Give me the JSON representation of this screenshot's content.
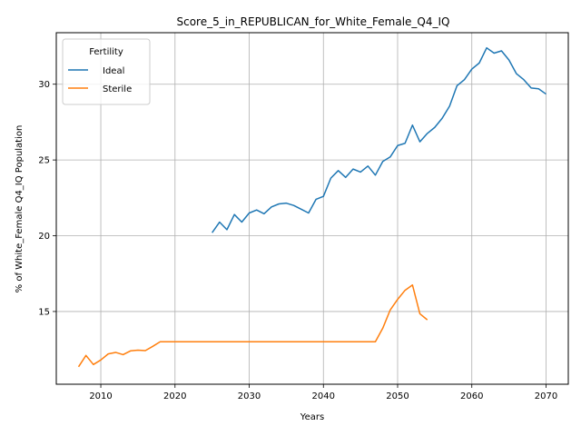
{
  "chart_data": {
    "type": "line",
    "title": "Score_5_in_REPUBLICAN_for_White_Female_Q4_IQ",
    "xlabel": "Years",
    "ylabel": "% of White_Female Q4_IQ Population",
    "xlim": [
      2004,
      2073
    ],
    "ylim": [
      10.2,
      33.4
    ],
    "xticks": [
      2010,
      2020,
      2030,
      2040,
      2050,
      2060,
      2070
    ],
    "yticks": [
      15,
      20,
      25,
      30
    ],
    "grid": true,
    "legend": {
      "title": "Fertility",
      "placement": "top-left"
    },
    "series": [
      {
        "name": "Ideal",
        "color": "#1f77b4",
        "x": [
          2025,
          2026,
          2027,
          2028,
          2029,
          2030,
          2031,
          2032,
          2033,
          2034,
          2035,
          2036,
          2037,
          2038,
          2039,
          2040,
          2041,
          2042,
          2043,
          2044,
          2045,
          2046,
          2047,
          2048,
          2049,
          2050,
          2051,
          2052,
          2053,
          2054,
          2055,
          2056,
          2057,
          2058,
          2059,
          2060,
          2061,
          2062,
          2063,
          2064,
          2065,
          2066,
          2067,
          2068,
          2069,
          2070
        ],
        "y": [
          20.2,
          20.9,
          20.4,
          21.4,
          20.9,
          21.5,
          21.7,
          21.45,
          21.9,
          22.1,
          22.15,
          22.0,
          21.75,
          21.5,
          22.4,
          22.6,
          23.8,
          24.3,
          23.85,
          24.4,
          24.2,
          24.6,
          24.0,
          24.9,
          25.2,
          25.95,
          26.1,
          27.3,
          26.2,
          26.75,
          27.15,
          27.75,
          28.55,
          29.9,
          30.3,
          31.0,
          31.4,
          32.4,
          32.05,
          32.2,
          31.6,
          30.7,
          30.3,
          29.75,
          29.7,
          29.35
        ]
      },
      {
        "name": "Sterile",
        "color": "#ff7f0e",
        "x": [
          2007,
          2008,
          2009,
          2010,
          2011,
          2012,
          2013,
          2014,
          2015,
          2016,
          2017,
          2018,
          2019,
          2020,
          2021,
          2022,
          2023,
          2024,
          2025,
          2026,
          2027,
          2028,
          2029,
          2030,
          2031,
          2032,
          2033,
          2034,
          2035,
          2036,
          2037,
          2038,
          2039,
          2040,
          2041,
          2042,
          2043,
          2044,
          2045,
          2046,
          2047,
          2048,
          2049,
          2050,
          2051,
          2052,
          2053,
          2054
        ],
        "y": [
          11.35,
          12.1,
          11.5,
          11.8,
          12.2,
          12.3,
          12.15,
          12.4,
          12.45,
          12.42,
          12.7,
          13.0,
          13.0,
          13.0,
          13.0,
          13.0,
          13.0,
          13.0,
          13.0,
          13.0,
          13.0,
          13.0,
          13.0,
          13.0,
          13.0,
          13.0,
          13.0,
          13.0,
          13.0,
          13.0,
          13.0,
          13.0,
          13.0,
          13.0,
          13.0,
          13.0,
          13.0,
          13.0,
          13.0,
          13.0,
          13.0,
          13.9,
          15.1,
          15.8,
          16.4,
          16.75,
          14.85,
          14.45
        ]
      }
    ]
  }
}
